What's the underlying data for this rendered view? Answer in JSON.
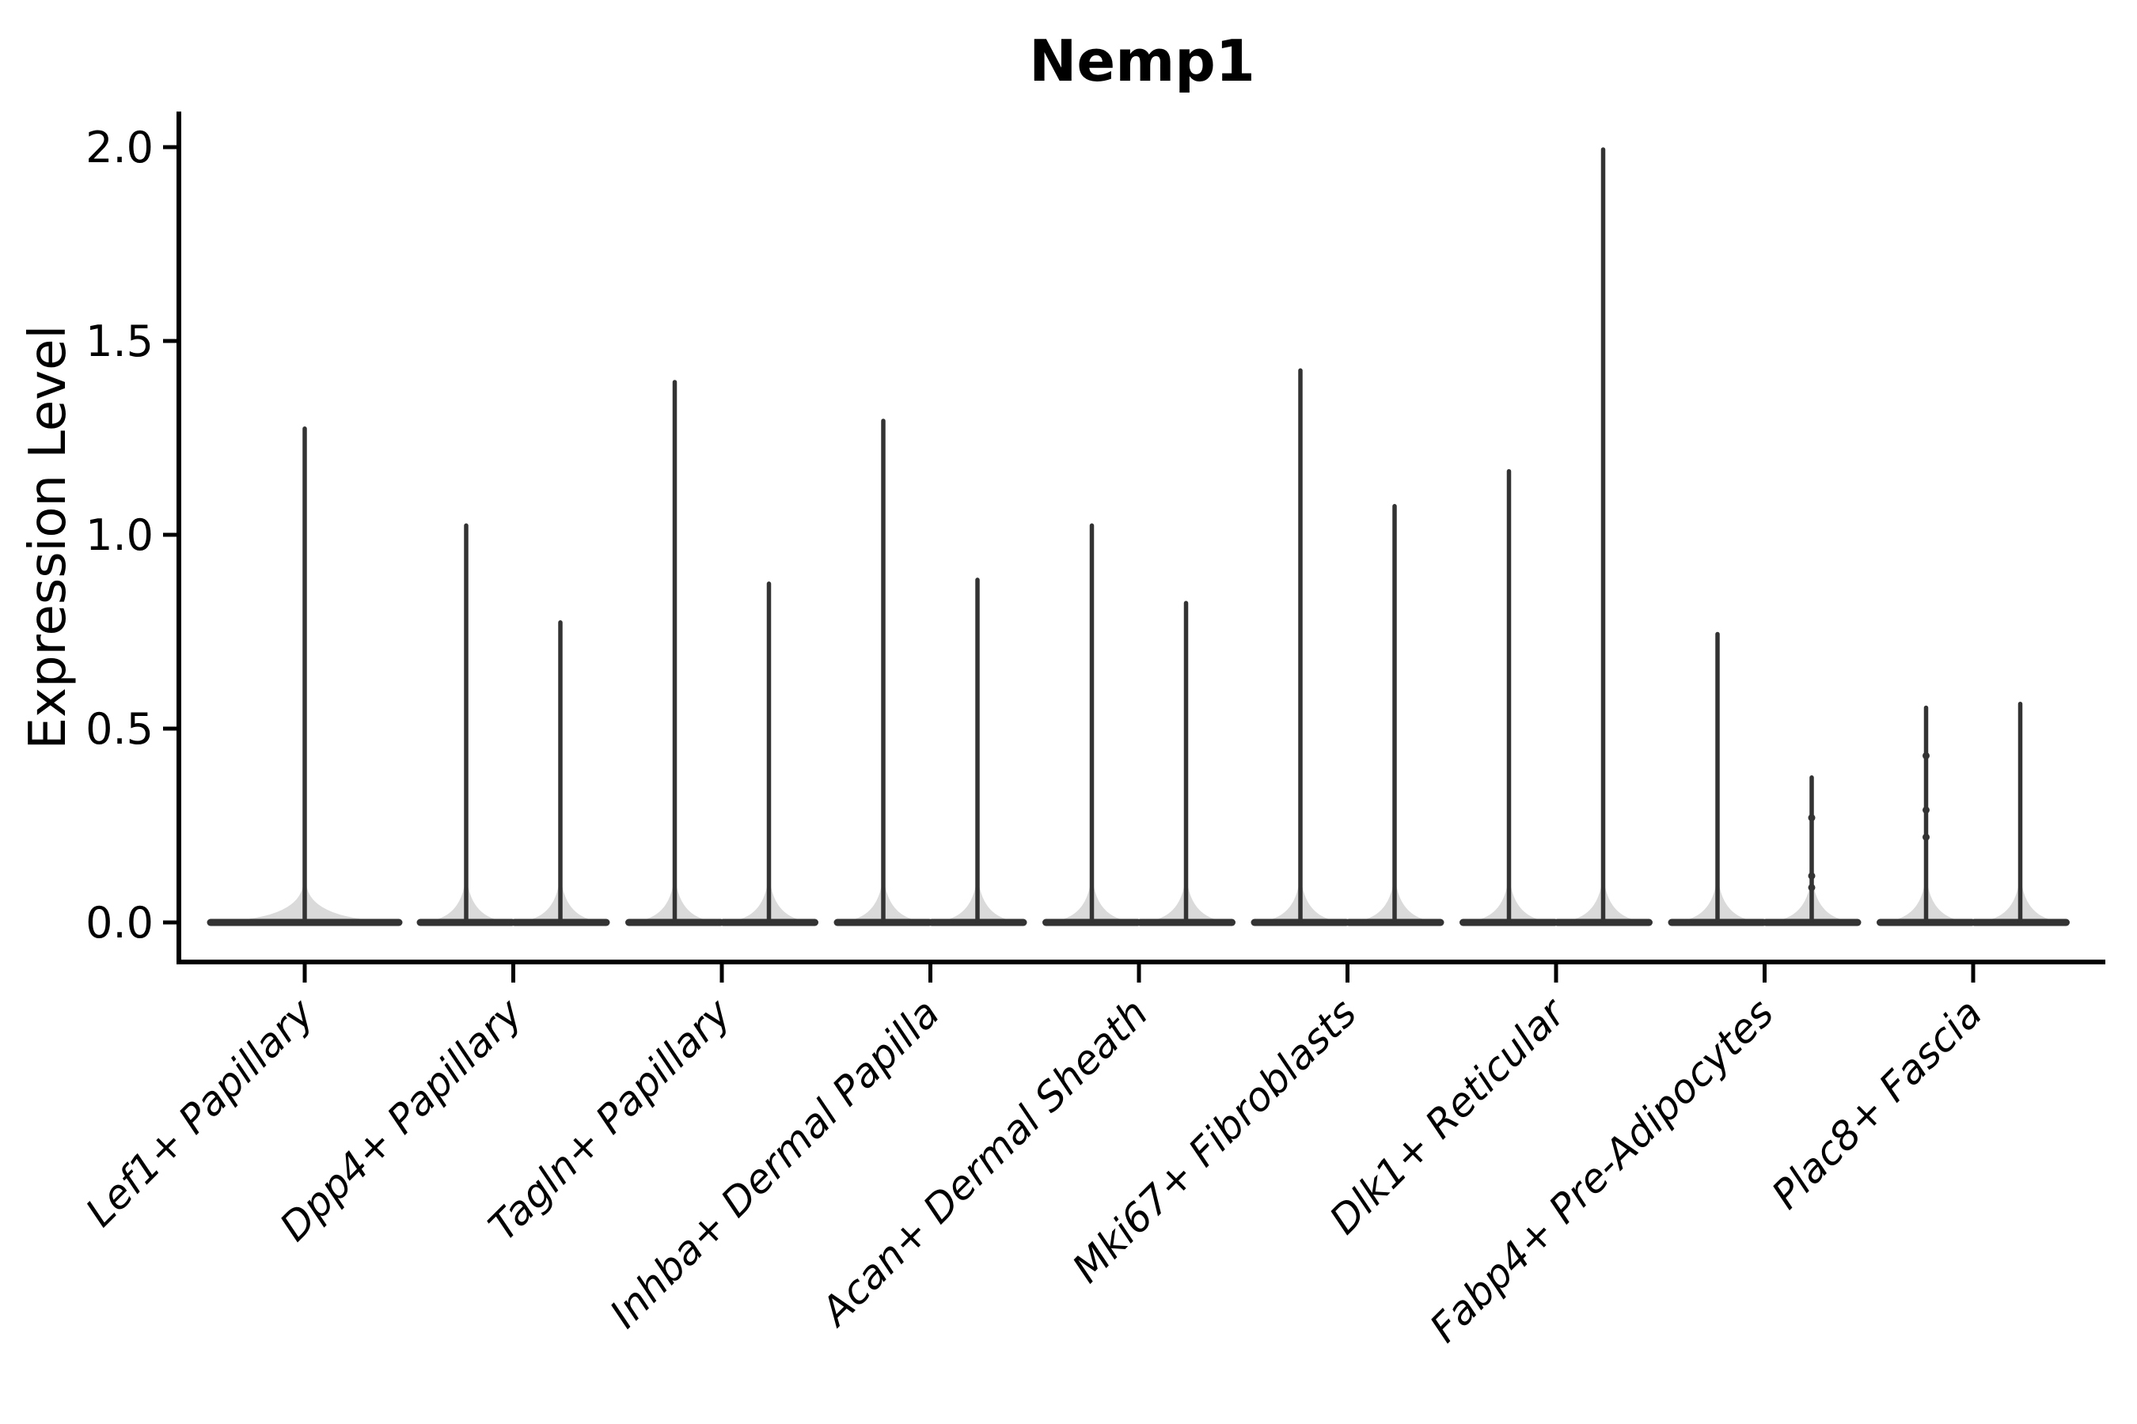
{
  "figure": {
    "background": "#ffffff",
    "violin_color": "#333333",
    "axis_color": "#000000"
  },
  "chart_data": {
    "type": "violin",
    "title": "Nemp1",
    "xlabel": "",
    "ylabel": "Expression Level",
    "ylim": [
      0,
      2.1
    ],
    "yticks": [
      "0.0",
      "0.5",
      "1.0",
      "1.5",
      "2.0"
    ],
    "grid": false,
    "legend": null,
    "x_tick_label_style": "italic, rotated 45deg",
    "categories": [
      "Lef1+ Papillary",
      "Dpp4+ Papillary",
      "Tagln+ Papillary",
      "Inhba+ Dermal Papilla",
      "Acan+ Dermal Sheath",
      "Mki67+ Fibroblasts",
      "Dlk1+ Reticular",
      "Fabp4+ Pre-Adipocytes",
      "Plac8+ Fascia"
    ],
    "series": [
      {
        "category": "Lef1+ Papillary",
        "violins": [
          {
            "offset": 0,
            "max": 1.28,
            "width": "full"
          }
        ]
      },
      {
        "category": "Dpp4+ Papillary",
        "violins": [
          {
            "offset": -1,
            "max": 1.03
          },
          {
            "offset": 1,
            "max": 0.78
          }
        ]
      },
      {
        "category": "Tagln+ Papillary",
        "violins": [
          {
            "offset": -1,
            "max": 1.4
          },
          {
            "offset": 1,
            "max": 0.88
          }
        ]
      },
      {
        "category": "Inhba+ Dermal Papilla",
        "violins": [
          {
            "offset": -1,
            "max": 1.3
          },
          {
            "offset": 1,
            "max": 0.89
          }
        ]
      },
      {
        "category": "Acan+ Dermal Sheath",
        "violins": [
          {
            "offset": -1,
            "max": 1.03
          },
          {
            "offset": 1,
            "max": 0.83
          }
        ]
      },
      {
        "category": "Mki67+ Fibroblasts",
        "violins": [
          {
            "offset": -1,
            "max": 1.43
          },
          {
            "offset": 1,
            "max": 1.08
          }
        ]
      },
      {
        "category": "Dlk1+ Reticular",
        "violins": [
          {
            "offset": -1,
            "max": 1.17
          },
          {
            "offset": 1,
            "max": 2.0
          }
        ]
      },
      {
        "category": "Fabp4+ Pre-Adipocytes",
        "violins": [
          {
            "offset": -1,
            "max": 0.75
          },
          {
            "offset": 1,
            "max": 0.38,
            "dots": [
              0.27,
              0.12,
              0.09
            ]
          }
        ]
      },
      {
        "category": "Plac8+ Fascia",
        "violins": [
          {
            "offset": -1,
            "max": 0.56,
            "dots": [
              0.43,
              0.29,
              0.22
            ]
          },
          {
            "offset": 1,
            "max": 0.57
          }
        ]
      }
    ]
  }
}
